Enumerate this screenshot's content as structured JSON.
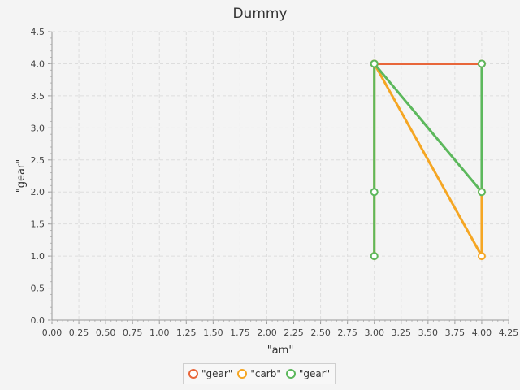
{
  "chart_data": {
    "type": "line",
    "title": "Dummy",
    "xlabel": "\"am\"",
    "ylabel": "\"gear\"",
    "xlim": [
      0,
      4.25
    ],
    "ylim": [
      0,
      4.5
    ],
    "x_ticks": [
      "0.00",
      "0.25",
      "0.50",
      "0.75",
      "1.00",
      "1.25",
      "1.50",
      "1.75",
      "2.00",
      "2.25",
      "2.50",
      "2.75",
      "3.00",
      "3.25",
      "3.50",
      "3.75",
      "4.00",
      "4.25"
    ],
    "y_ticks": [
      "0.0",
      "0.5",
      "1.0",
      "1.5",
      "2.0",
      "2.5",
      "3.0",
      "3.5",
      "4.0",
      "4.5"
    ],
    "grid": true,
    "legend_position": "bottom",
    "series": [
      {
        "name": "\"gear\"",
        "color": "#e8663a",
        "points": [
          [
            3,
            4
          ],
          [
            4,
            4
          ]
        ]
      },
      {
        "name": "\"carb\"",
        "color": "#f5a623",
        "points": [
          [
            3,
            1
          ],
          [
            3,
            4
          ],
          [
            4,
            1
          ],
          [
            4,
            2
          ]
        ]
      },
      {
        "name": "\"gear\"",
        "color": "#5cb85c",
        "points": [
          [
            3,
            1
          ],
          [
            3,
            2
          ],
          [
            3,
            4
          ],
          [
            4,
            2
          ],
          [
            4,
            4
          ]
        ]
      }
    ]
  }
}
